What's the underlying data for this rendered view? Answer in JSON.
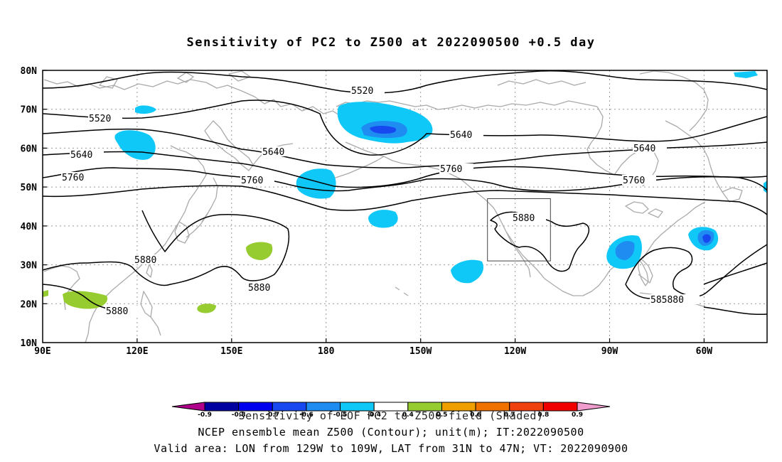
{
  "title": "Sensitivity of PC2 to Z500 at 2022090500 +0.5 day",
  "axes": {
    "lat_ticks": [
      "80N",
      "70N",
      "60N",
      "50N",
      "40N",
      "30N",
      "20N",
      "10N"
    ],
    "lon_ticks": [
      "90E",
      "120E",
      "150E",
      "180",
      "150W",
      "120W",
      "90W",
      "60W"
    ],
    "lon_range_deg_east": [
      90,
      320
    ],
    "lat_range_deg": [
      10,
      80
    ],
    "grid": "dotted"
  },
  "contour_labels": {
    "c5520": "5520",
    "c5640": "5640",
    "c5760": "5760",
    "c5880": "5880",
    "c585880": "585880"
  },
  "colorbar": {
    "colors": [
      "#b0008b",
      "#0000a0",
      "#0000ee",
      "#1848f0",
      "#1e8cf0",
      "#10c8f8",
      "#ffffff",
      "#96cc30",
      "#ef9f00",
      "#f07000",
      "#f04010",
      "#f00000",
      "#f09ccc"
    ],
    "tick_labels": [
      "-0.9",
      "-0.8",
      "-0.7",
      "-0.6",
      "-0.5",
      "-0.4",
      "0.4",
      "0.5",
      "0.6",
      "0.7",
      "0.8",
      "0.9"
    ]
  },
  "captions": {
    "line1": "Sensitivity of EOF PC2 to Z500 field (Shaded)",
    "line2": "NCEP ensemble mean Z500 (Contour); unit(m); IT:2022090500",
    "line3": "Valid area: LON from 129W to 109W, LAT from 31N to 47N; VT: 2022090900"
  },
  "valid_area": {
    "lon_from": "129W",
    "lon_to": "109W",
    "lat_from": "31N",
    "lat_to": "47N"
  },
  "colors": {
    "cyan": "#10c8f8",
    "blue": "#1e8cf0",
    "deep_blue": "#1848f0",
    "green": "#96cc30",
    "coast": "#aaaaaa",
    "contour": "#000000"
  }
}
